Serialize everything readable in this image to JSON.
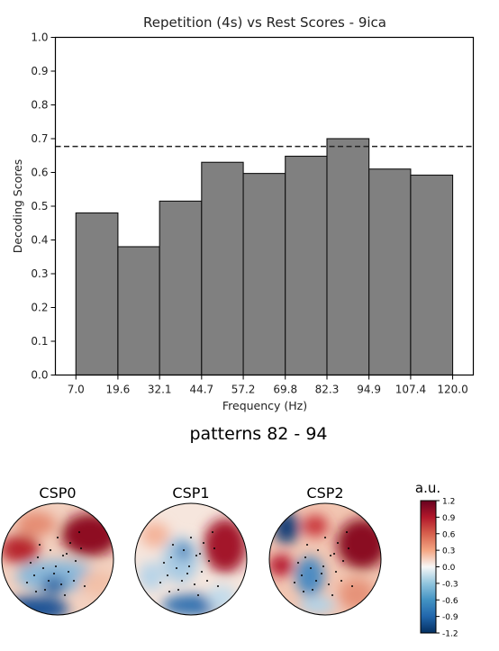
{
  "chart_data": [
    {
      "type": "bar",
      "title": "Repetition (4s) vs Rest Scores - 9ica",
      "xlabel": "Frequency (Hz)",
      "ylabel": "Decoding Scores",
      "x_ticks": [
        "7.0",
        "19.6",
        "32.1",
        "44.7",
        "57.2",
        "69.8",
        "82.3",
        "94.9",
        "107.4",
        "120.0"
      ],
      "bin_edges": [
        7.0,
        19.6,
        32.1,
        44.7,
        57.2,
        69.8,
        82.3,
        94.9,
        107.4,
        120.0
      ],
      "values": [
        0.48,
        0.38,
        0.515,
        0.63,
        0.597,
        0.648,
        0.7,
        0.61,
        0.592
      ],
      "ylim": [
        0,
        1.0
      ],
      "y_ticks": [
        "0.0",
        "0.1",
        "0.2",
        "0.3",
        "0.4",
        "0.5",
        "0.6",
        "0.7",
        "0.8",
        "0.9",
        "1.0"
      ],
      "y_tick_values": [
        0,
        0.1,
        0.2,
        0.3,
        0.4,
        0.5,
        0.6,
        0.7,
        0.8,
        0.9,
        1.0
      ],
      "threshold": 0.677,
      "threshold_style": "dashed",
      "bar_color": "#808080",
      "grid": false,
      "legend": "none"
    },
    {
      "type": "heatmap",
      "title": "patterns 82 - 94",
      "panels": [
        "CSP0",
        "CSP1",
        "CSP2"
      ],
      "colorbar_label": "a.u.",
      "colorbar_ticks": [
        "1.2",
        "0.9",
        "0.6",
        "0.3",
        "0.0",
        "-0.3",
        "-0.6",
        "-0.9",
        "-1.2"
      ],
      "colorbar_range": [
        -1.2,
        1.2
      ],
      "colormap": "RdBu_r"
    }
  ]
}
